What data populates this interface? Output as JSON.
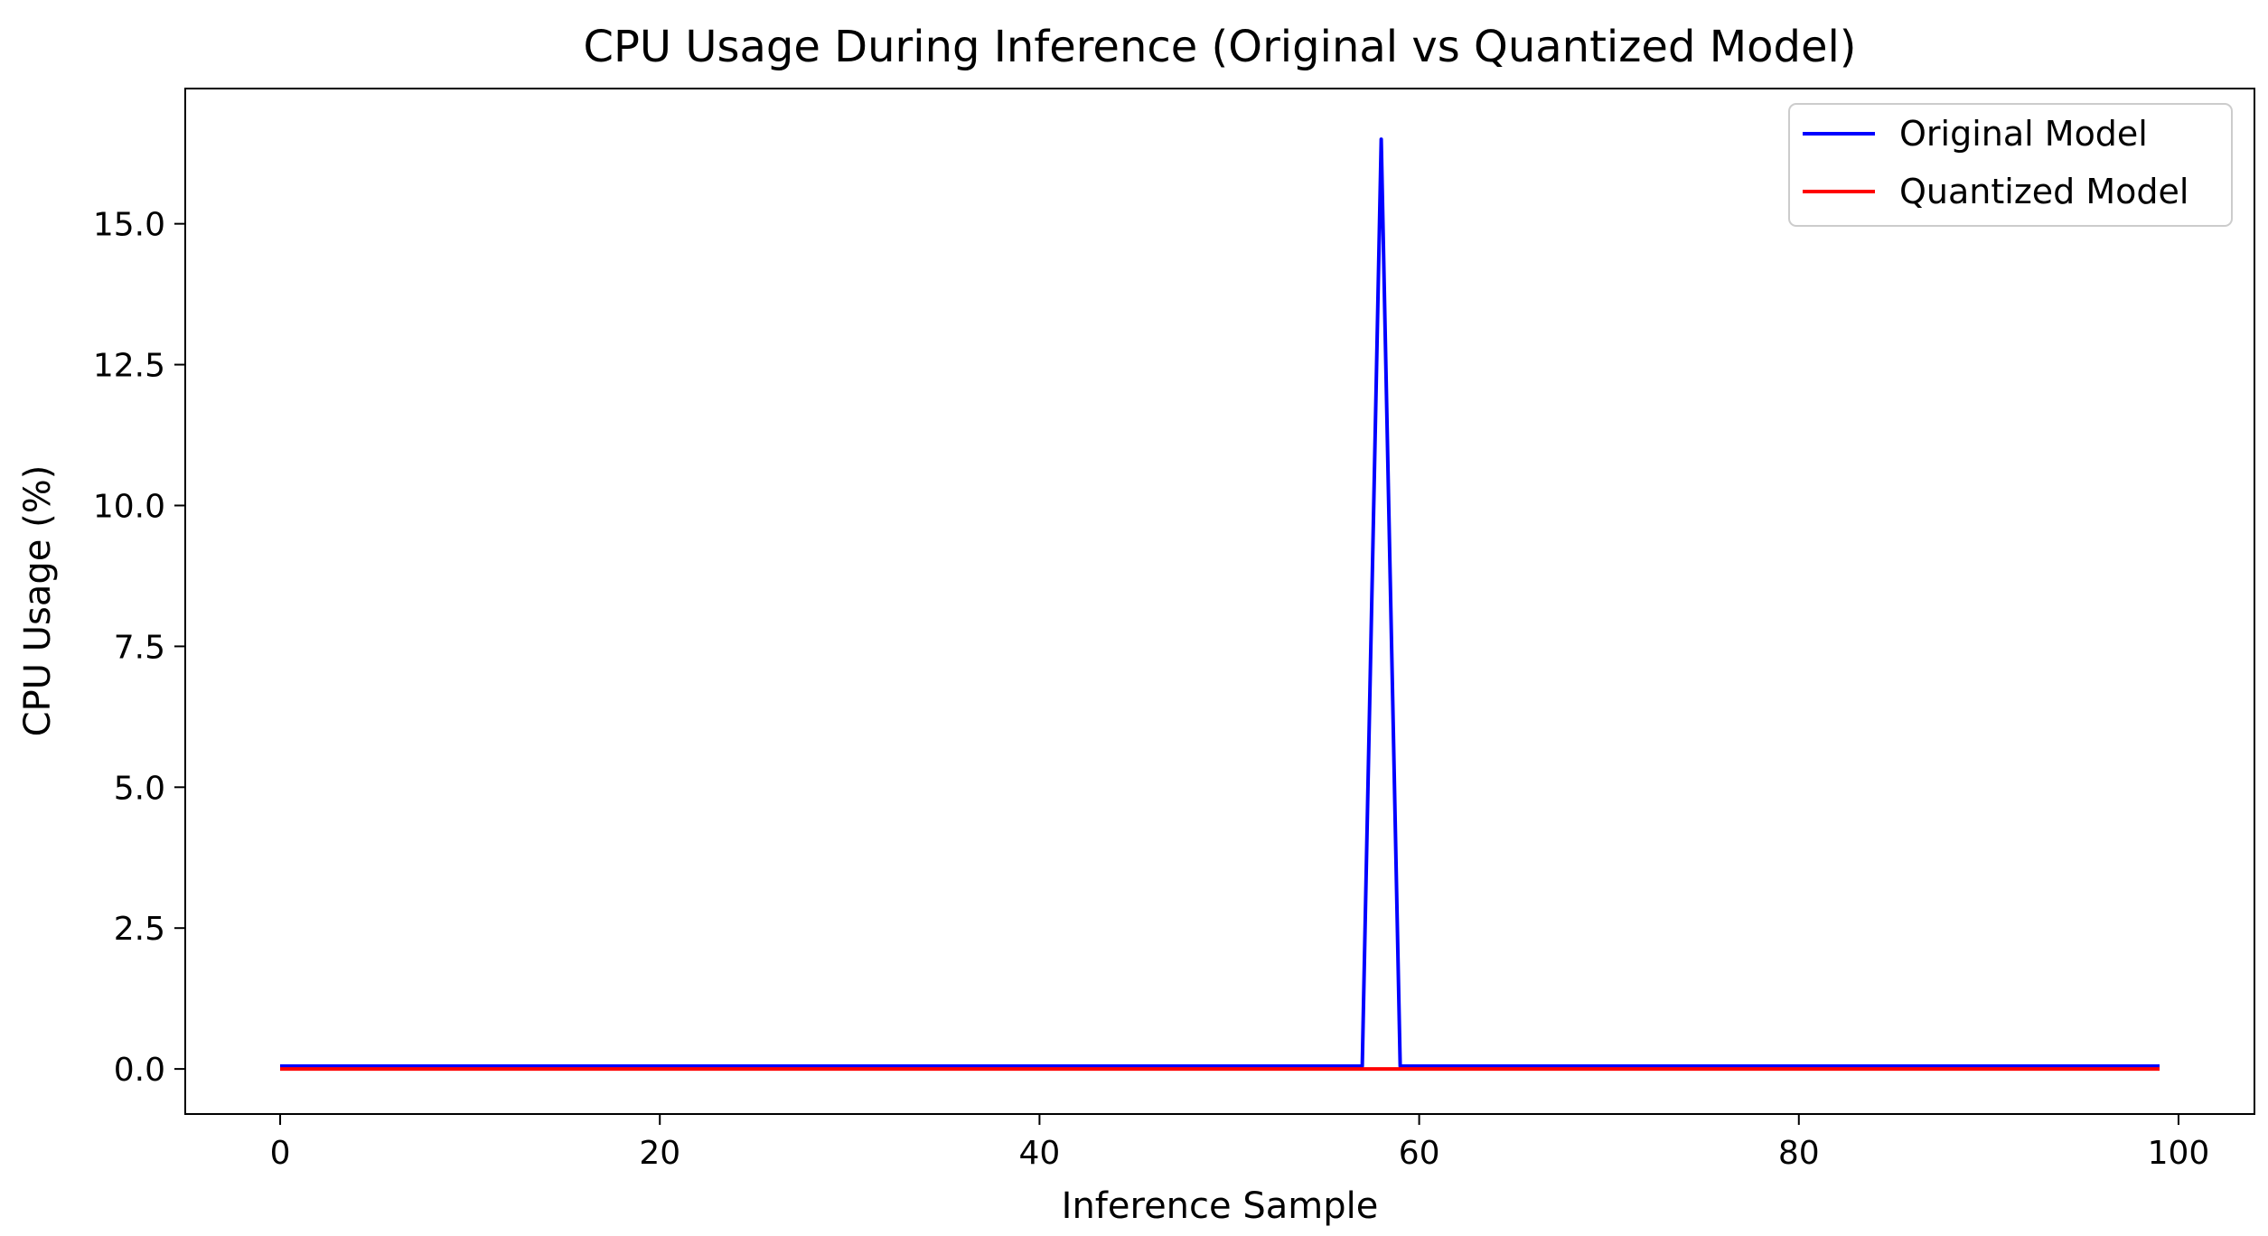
{
  "chart_data": {
    "type": "line",
    "title": "CPU Usage During Inference (Original vs Quantized Model)",
    "xlabel": "Inference Sample",
    "ylabel": "CPU Usage (%)",
    "xlim": [
      -5,
      104
    ],
    "ylim": [
      -0.8,
      17.4
    ],
    "xticks": [
      0,
      20,
      40,
      60,
      80,
      100
    ],
    "xtick_labels": [
      "0",
      "20",
      "40",
      "60",
      "80",
      "100"
    ],
    "yticks": [
      0,
      2.5,
      5,
      7.5,
      10,
      12.5,
      15
    ],
    "ytick_labels": [
      "0.0",
      "2.5",
      "5.0",
      "7.5",
      "10.0",
      "12.5",
      "15.0"
    ],
    "grid": false,
    "legend_position": "top-right",
    "series": [
      {
        "name": "Original Model",
        "color": "#0000ff",
        "x": [
          0,
          57,
          58,
          59,
          99
        ],
        "y": [
          0.05,
          0.05,
          16.5,
          0.05,
          0.05
        ]
      },
      {
        "name": "Quantized Model",
        "color": "#ff0000",
        "x": [
          0,
          99
        ],
        "y": [
          0.0,
          0.0
        ]
      }
    ]
  }
}
